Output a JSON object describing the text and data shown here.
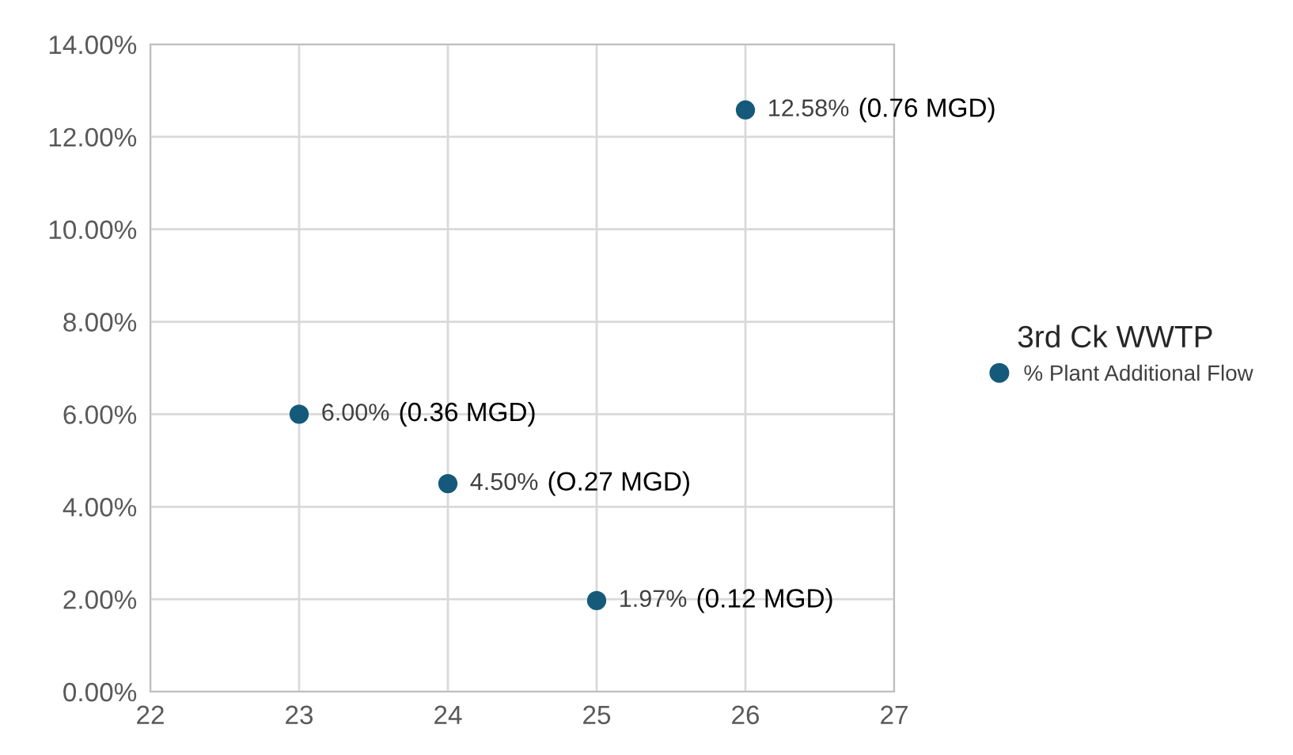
{
  "chart_data": {
    "type": "scatter",
    "x": [
      23,
      24,
      25,
      26
    ],
    "series": [
      {
        "name": "% Plant Additional Flow",
        "color": "#155a7a",
        "values": [
          6.0,
          4.5,
          1.97,
          12.58
        ],
        "value_labels": [
          "6.00%",
          "4.50%",
          "1.97%",
          "12.58%"
        ]
      }
    ],
    "legend_title": "3rd Ck WWTP",
    "annotations": [
      "(0.36 MGD)",
      "(O.27 MGD)",
      "(0.12 MGD)",
      "(0.76 MGD)"
    ],
    "xlim": [
      22,
      27
    ],
    "xticks": [
      22,
      23,
      24,
      25,
      26,
      27
    ],
    "ylim": [
      0,
      14
    ],
    "yticks": [
      {
        "value": 0,
        "label": "0.00%"
      },
      {
        "value": 2,
        "label": "2.00%"
      },
      {
        "value": 4,
        "label": "4.00%"
      },
      {
        "value": 6,
        "label": "6.00%"
      },
      {
        "value": 8,
        "label": "8.00%"
      },
      {
        "value": 10,
        "label": "10.00%"
      },
      {
        "value": 12,
        "label": "12.00%"
      },
      {
        "value": 14,
        "label": "14.00%"
      }
    ],
    "grid": true,
    "legend": "right",
    "marker": "circle"
  }
}
